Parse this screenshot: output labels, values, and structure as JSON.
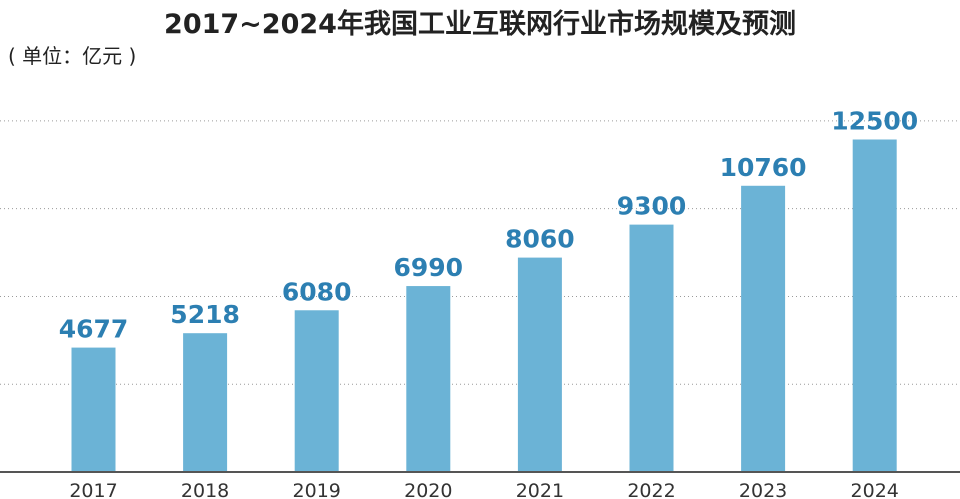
{
  "chart_data": {
    "type": "bar",
    "title": "2017~2024年我国工业互联网行业市场规模及预测",
    "unit_label": "( 单位：亿元 )",
    "categories": [
      "2017",
      "2018",
      "2019",
      "2020",
      "2021",
      "2022",
      "2023",
      "2024"
    ],
    "values": [
      4677,
      5218,
      6080,
      6990,
      8060,
      9300,
      10760,
      12500
    ],
    "ylim": [
      0,
      14000
    ],
    "grid": true,
    "grid_style": "dotted horizontal",
    "colors": {
      "bar": "#6bb3d6",
      "value_label": "#2c7fb2",
      "text": "#222222"
    }
  }
}
